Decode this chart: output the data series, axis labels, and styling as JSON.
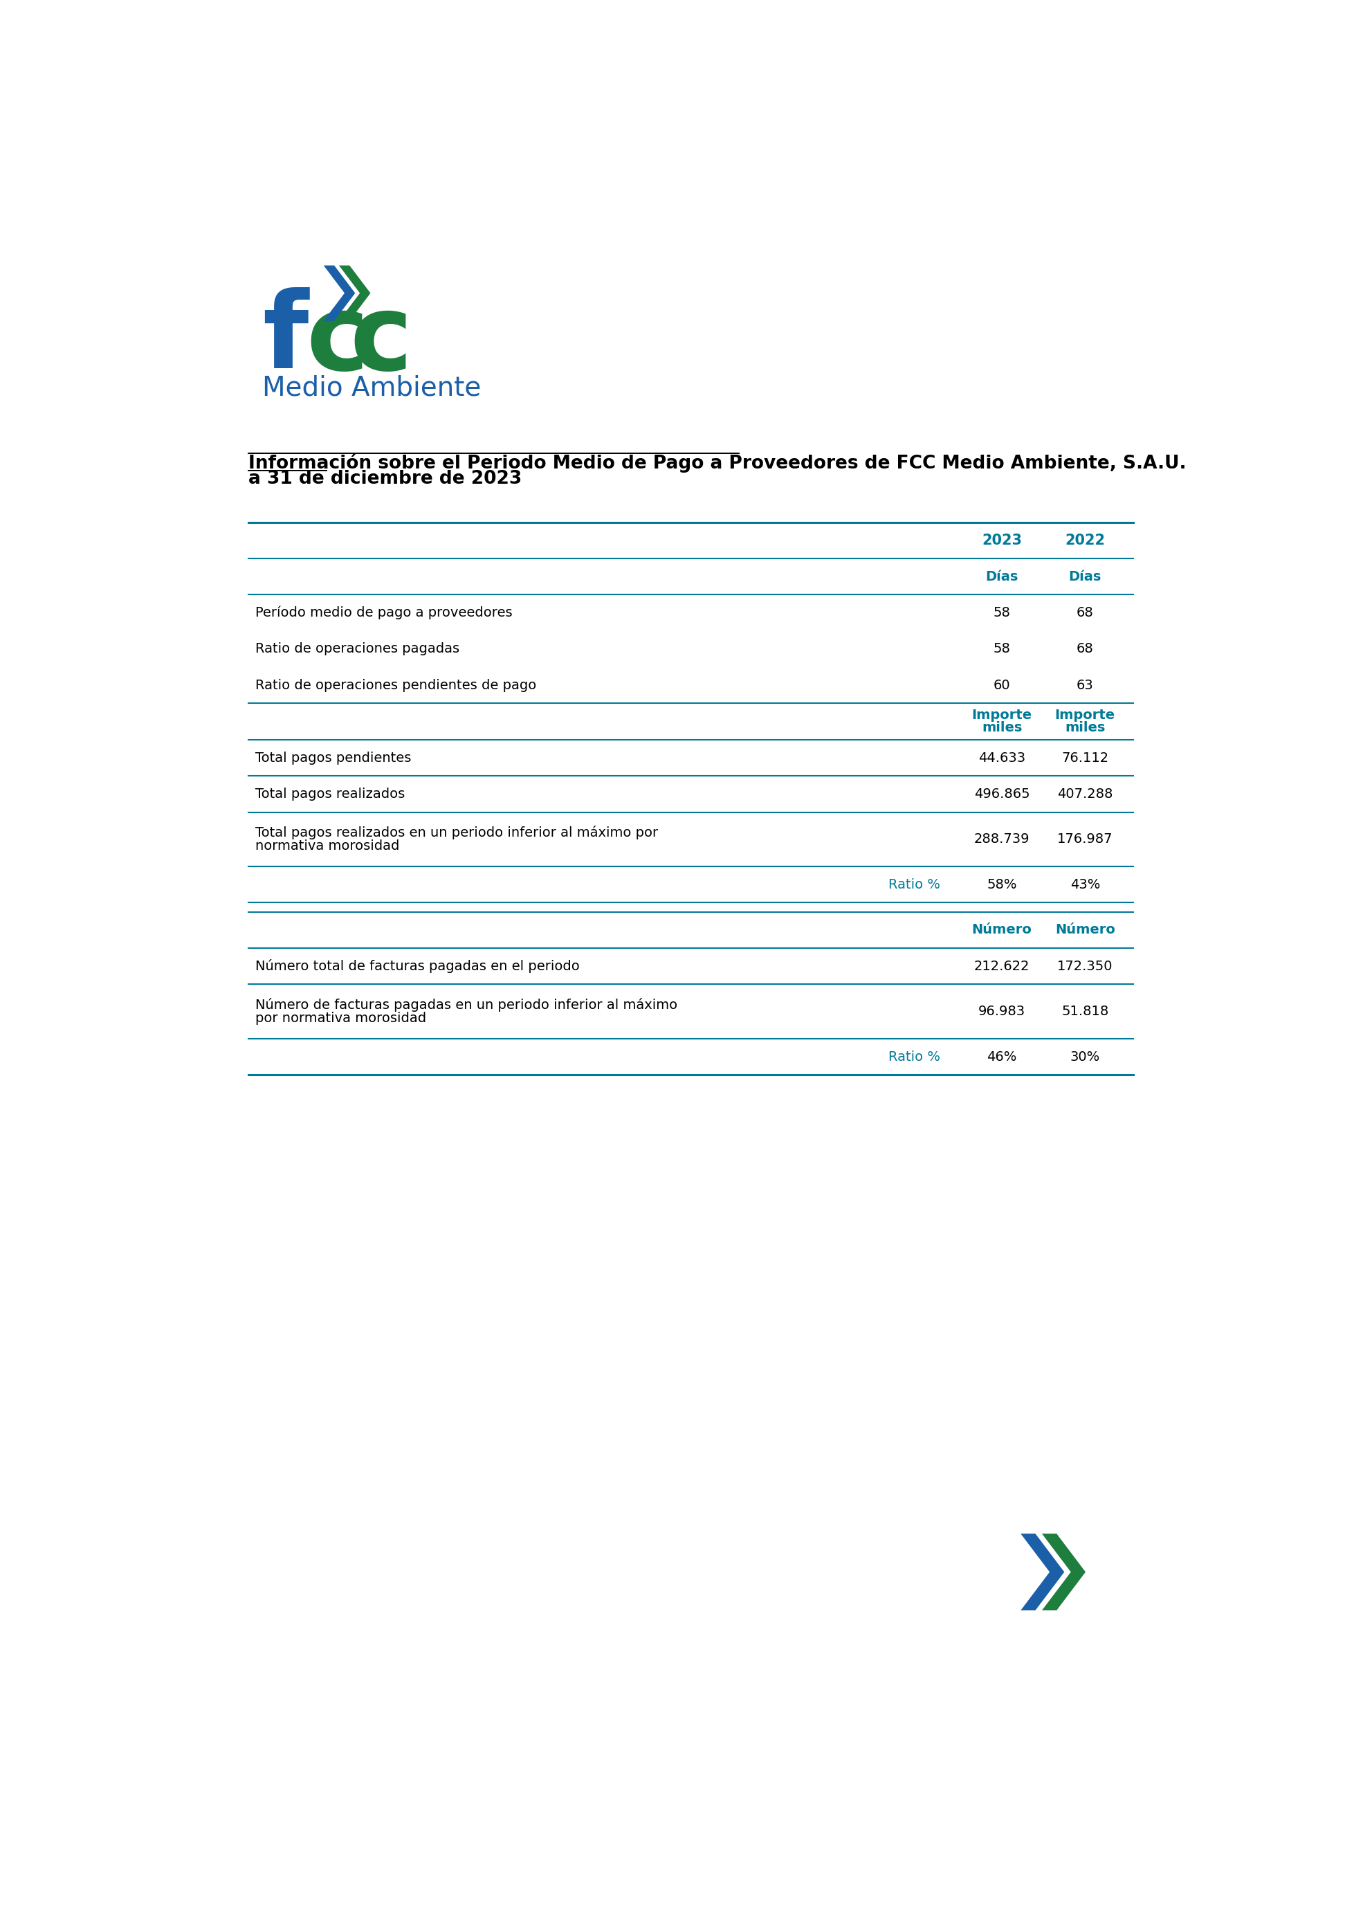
{
  "title_line1": "Información sobre el Periodo Medio de Pago a Proveedores de FCC Medio Ambiente, S.A.U.",
  "title_line2": "a 31 de diciembre de 2023",
  "rows_dias": [
    [
      "Período medio de pago a proveedores",
      "58",
      "68"
    ],
    [
      "Ratio de operaciones pagadas",
      "58",
      "68"
    ],
    [
      "Ratio de operaciones pendientes de pago",
      "60",
      "63"
    ]
  ],
  "rows_importe": [
    [
      "Total pagos pendientes",
      "44.633",
      "76.112"
    ],
    [
      "Total pagos realizados",
      "496.865",
      "407.288"
    ],
    [
      "Total pagos realizados en un periodo inferior al máximo por\nnormativa morosidad",
      "288.739",
      "176.987"
    ]
  ],
  "ratio_row": [
    "Ratio %",
    "58%",
    "43%"
  ],
  "rows_numero": [
    [
      "Número total de facturas pagadas en el periodo",
      "212.622",
      "172.350"
    ],
    [
      "Número de facturas pagadas en un periodo inferior al máximo\npor normativa morosidad",
      "96.983",
      "51.818"
    ]
  ],
  "ratio_row2": [
    "Ratio %",
    "46%",
    "30%"
  ],
  "blue": "#1a5fa8",
  "green": "#1e7e3e",
  "teal": "#007a99",
  "text_color": "#222222",
  "line_color": "#007a99"
}
